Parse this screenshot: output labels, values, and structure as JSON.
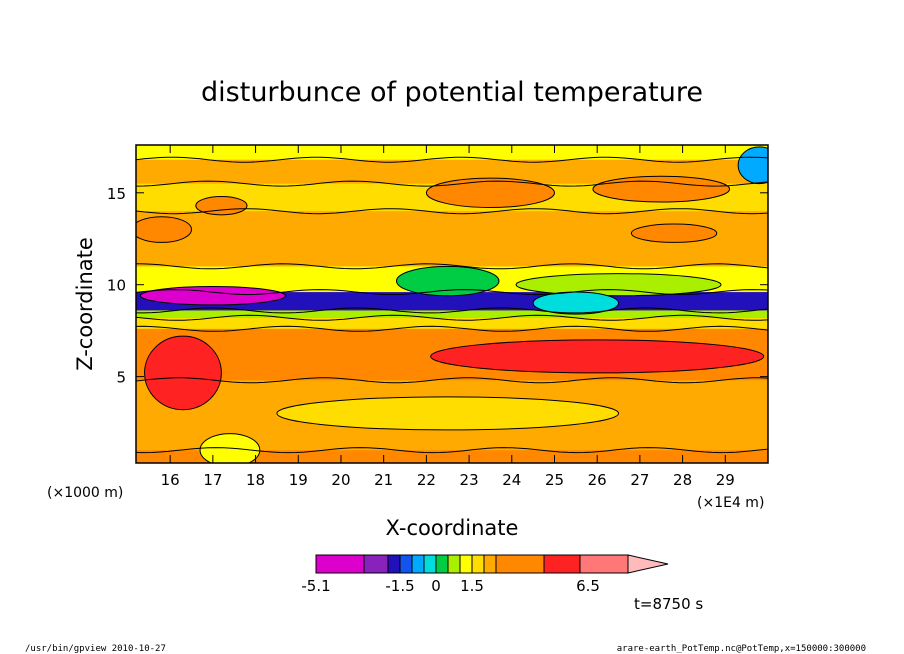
{
  "chart_data": {
    "type": "heatmap",
    "title": "disturbunce of potential temperature",
    "xlabel": "X-coordinate",
    "ylabel": "Z-coordinate",
    "x_unit_left": "(×1000 m)",
    "x_unit_right": "(×1E4 m)",
    "xlim": [
      15.2,
      30.0
    ],
    "ylim": [
      0.3,
      17.6
    ],
    "x_ticks": [
      "16",
      "17",
      "18",
      "19",
      "20",
      "21",
      "22",
      "23",
      "24",
      "25",
      "26",
      "27",
      "28",
      "29"
    ],
    "y_ticks": [
      "5",
      "10",
      "15"
    ],
    "grid": false,
    "colorbar": {
      "labels": [
        "-5.1",
        "-1.5",
        "0",
        "1.5",
        "6.5"
      ],
      "colors": [
        "#dd00cc",
        "#8822bb",
        "#2211bb",
        "#1155ee",
        "#00aaff",
        "#00dddd",
        "#00cc44",
        "#aaee00",
        "#ffff00",
        "#ffdd00",
        "#ffaa00",
        "#ff8800",
        "#ff2222",
        "#ff7777",
        "#ffbbbb"
      ]
    },
    "time_label": "t=8750 s",
    "layers": [
      {
        "zmin": 0.3,
        "zmax": 1.0,
        "color": "#ff8800"
      },
      {
        "zmin": 1.0,
        "zmax": 4.8,
        "color": "#ffaa00"
      },
      {
        "zmin": 4.8,
        "zmax": 7.6,
        "color": "#ff8800"
      },
      {
        "zmin": 7.6,
        "zmax": 8.2,
        "color": "#ffdd00"
      },
      {
        "zmin": 8.2,
        "zmax": 8.6,
        "color": "#aaee00"
      },
      {
        "zmin": 8.6,
        "zmax": 9.6,
        "color": "#2211bb"
      },
      {
        "zmin": 9.6,
        "zmax": 11.0,
        "color": "#ffff00"
      },
      {
        "zmin": 11.0,
        "zmax": 14.0,
        "color": "#ffaa00"
      },
      {
        "zmin": 14.0,
        "zmax": 15.5,
        "color": "#ffdd00"
      },
      {
        "zmin": 15.5,
        "zmax": 16.8,
        "color": "#ffaa00"
      },
      {
        "zmin": 16.8,
        "zmax": 17.6,
        "color": "#ffff00"
      }
    ],
    "features": [
      {
        "kind": "ellipse",
        "cx": 16.3,
        "cz": 5.2,
        "rx": 0.9,
        "rz": 2.0,
        "color": "#ff2222"
      },
      {
        "kind": "ellipse",
        "cx": 26.0,
        "cz": 6.1,
        "rx": 3.9,
        "rz": 0.9,
        "color": "#ff2222"
      },
      {
        "kind": "ellipse",
        "cx": 23.5,
        "cz": 15.0,
        "rx": 1.5,
        "rz": 0.8,
        "color": "#ff8800"
      },
      {
        "kind": "ellipse",
        "cx": 27.5,
        "cz": 15.2,
        "rx": 1.6,
        "rz": 0.7,
        "color": "#ff8800"
      },
      {
        "kind": "ellipse",
        "cx": 15.8,
        "cz": 13.0,
        "rx": 0.7,
        "rz": 0.7,
        "color": "#ff8800"
      },
      {
        "kind": "ellipse",
        "cx": 17.2,
        "cz": 14.3,
        "rx": 0.6,
        "rz": 0.5,
        "color": "#ff8800"
      },
      {
        "kind": "ellipse",
        "cx": 27.8,
        "cz": 12.8,
        "rx": 1.0,
        "rz": 0.5,
        "color": "#ff8800"
      },
      {
        "kind": "ellipse",
        "cx": 22.5,
        "cz": 10.2,
        "rx": 1.2,
        "rz": 0.8,
        "color": "#00cc44"
      },
      {
        "kind": "ellipse",
        "cx": 26.5,
        "cz": 10.0,
        "rx": 2.4,
        "rz": 0.6,
        "color": "#aaee00"
      },
      {
        "kind": "ellipse",
        "cx": 25.5,
        "cz": 9.0,
        "rx": 1.0,
        "rz": 0.6,
        "color": "#00dddd"
      },
      {
        "kind": "ellipse",
        "cx": 17.0,
        "cz": 9.4,
        "rx": 1.7,
        "rz": 0.5,
        "color": "#dd00cc"
      },
      {
        "kind": "ellipse",
        "cx": 29.8,
        "cz": 16.5,
        "rx": 0.5,
        "rz": 1.0,
        "color": "#00aaff"
      },
      {
        "kind": "ellipse",
        "cx": 22.5,
        "cz": 3.0,
        "rx": 4.0,
        "rz": 0.9,
        "color": "#ffdd00"
      },
      {
        "kind": "ellipse",
        "cx": 17.4,
        "cz": 1.0,
        "rx": 0.7,
        "rz": 0.9,
        "color": "#ffff00"
      }
    ]
  },
  "footer": {
    "left": "/usr/bin/gpview   2010-10-27",
    "right": "arare-earth_PotTemp.nc@PotTemp,x=150000:300000"
  }
}
